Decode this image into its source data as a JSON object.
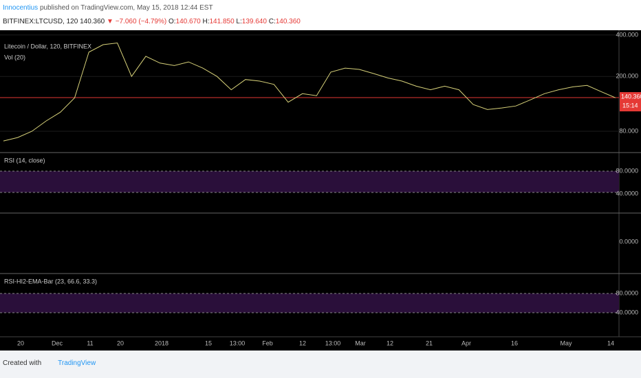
{
  "header": {
    "author": "Innocentius",
    "published": "published on TradingView.com, May 15, 2018 12:44 EST",
    "symbol": "BITFINEX:LTCUSD, 120",
    "last": "140.360",
    "change": "▼ −7.060 (−4.79%)",
    "open_label": "O:",
    "open": "140.670",
    "high_label": "H:",
    "high": "141.850",
    "low_label": "L:",
    "low": "139.640",
    "close_label": "C:",
    "close": "140.360"
  },
  "chart_data": {
    "type": "line",
    "title": "Litecoin / Dollar, 120, BITFINEX",
    "volume_label": "Vol (20)",
    "values": [
      68,
      72,
      80,
      95,
      110,
      140,
      300,
      340,
      350,
      200,
      280,
      250,
      240,
      255,
      230,
      200,
      160,
      190,
      185,
      175,
      130,
      150,
      145,
      215,
      230,
      225,
      210,
      195,
      185,
      170,
      160,
      170,
      160,
      125,
      115,
      118,
      122,
      135,
      150,
      160,
      168,
      172,
      155,
      140
    ],
    "color": "#d8d27a",
    "log_scale": true,
    "ylim": [
      56,
      433
    ],
    "yticks": [
      {
        "value": 400,
        "label": "400.000"
      },
      {
        "value": 200,
        "label": "200.000"
      },
      {
        "value": 80,
        "label": "80.000"
      }
    ],
    "last_price": {
      "value": 140.36,
      "label": "140.360"
    },
    "countdown": "15:14"
  },
  "panes": [
    {
      "label": "RSI (14, close)",
      "ticks": [
        "80.0000",
        "40.0000"
      ]
    },
    {
      "label": "",
      "ticks": [
        "0.0000"
      ]
    },
    {
      "label": "RSI-HI2-EMA-Bar (23, 66.6, 33.3)",
      "ticks": [
        "80.0000",
        "40.0000"
      ]
    }
  ],
  "time_axis": [
    "20",
    "Dec",
    "11",
    "20",
    "2018",
    "15",
    "13:00",
    "Feb",
    "12",
    "13:00",
    "Mar",
    "12",
    "21",
    "Apr",
    "16",
    "May",
    "14"
  ],
  "footer": {
    "created": "Created with",
    "brand": "TradingView"
  }
}
